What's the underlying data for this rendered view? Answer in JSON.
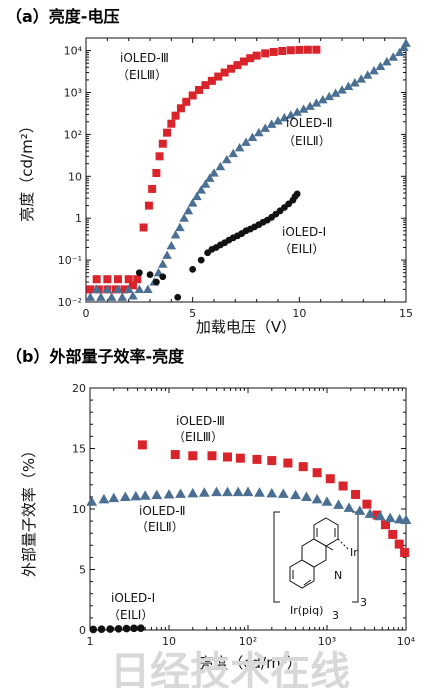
{
  "chart_data": [
    {
      "type": "scatter",
      "title": "（a）亮度-电压",
      "xlabel": "加载电压（V）",
      "ylabel": "亮度（cd/m²）",
      "xlim": [
        0,
        15
      ],
      "ylim": [
        0.01,
        20000
      ],
      "yscale": "log",
      "x_ticks": [
        "0",
        "5",
        "10",
        "15"
      ],
      "y_ticks": [
        "10⁻²",
        "10⁻¹",
        "1",
        "10",
        "10²",
        "10³",
        "10⁴"
      ],
      "series": [
        {
          "name": "iOLED-Ⅲ",
          "sublabel": "（EILⅢ）",
          "marker": "square",
          "color": "#d9242c",
          "points": [
            [
              0.2,
              0.02
            ],
            [
              0.6,
              0.02
            ],
            [
              1.0,
              0.02
            ],
            [
              1.4,
              0.02
            ],
            [
              1.8,
              0.02
            ],
            [
              2.2,
              0.025
            ],
            [
              0.5,
              0.035
            ],
            [
              1.0,
              0.035
            ],
            [
              1.5,
              0.035
            ],
            [
              2.0,
              0.035
            ],
            [
              2.4,
              0.035
            ],
            [
              2.7,
              0.6
            ],
            [
              2.95,
              2
            ],
            [
              3.1,
              5
            ],
            [
              3.3,
              12
            ],
            [
              3.45,
              30
            ],
            [
              3.6,
              60
            ],
            [
              3.8,
              110
            ],
            [
              4.0,
              180
            ],
            [
              4.2,
              280
            ],
            [
              4.45,
              420
            ],
            [
              4.7,
              600
            ],
            [
              5.0,
              850
            ],
            [
              5.3,
              1150
            ],
            [
              5.6,
              1500
            ],
            [
              5.9,
              1900
            ],
            [
              6.2,
              2400
            ],
            [
              6.5,
              3000
            ],
            [
              6.8,
              3700
            ],
            [
              7.1,
              4500
            ],
            [
              7.4,
              5500
            ],
            [
              7.7,
              6600
            ],
            [
              8.0,
              7600
            ],
            [
              8.4,
              8600
            ],
            [
              8.8,
              9300
            ],
            [
              9.2,
              9800
            ],
            [
              9.6,
              10200
            ],
            [
              10.0,
              10400
            ],
            [
              10.4,
              10500
            ],
            [
              10.8,
              10500
            ]
          ]
        },
        {
          "name": "iOLED-Ⅱ",
          "sublabel": "（EILⅡ）",
          "marker": "triangle",
          "color": "#4a6f93",
          "points": [
            [
              0.2,
              0.013
            ],
            [
              0.7,
              0.013
            ],
            [
              1.2,
              0.013
            ],
            [
              1.7,
              0.013
            ],
            [
              2.2,
              0.014
            ],
            [
              0.5,
              0.02
            ],
            [
              1.0,
              0.02
            ],
            [
              1.5,
              0.02
            ],
            [
              2.0,
              0.02
            ],
            [
              2.5,
              0.02
            ],
            [
              2.9,
              0.02
            ],
            [
              3.2,
              0.03
            ],
            [
              3.4,
              0.05
            ],
            [
              3.6,
              0.08
            ],
            [
              3.8,
              0.13
            ],
            [
              4.0,
              0.22
            ],
            [
              4.2,
              0.4
            ],
            [
              4.4,
              0.6
            ],
            [
              4.6,
              1.0
            ],
            [
              4.8,
              1.5
            ],
            [
              5.0,
              2.3
            ],
            [
              5.2,
              3.3
            ],
            [
              5.4,
              4.7
            ],
            [
              5.6,
              6.5
            ],
            [
              5.8,
              9
            ],
            [
              6.0,
              12
            ],
            [
              6.3,
              17
            ],
            [
              6.6,
              25
            ],
            [
              6.9,
              35
            ],
            [
              7.2,
              48
            ],
            [
              7.5,
              65
            ],
            [
              7.8,
              85
            ],
            [
              8.1,
              110
            ],
            [
              8.4,
              140
            ],
            [
              8.7,
              175
            ],
            [
              9.0,
              210
            ],
            [
              9.3,
              250
            ],
            [
              9.6,
              290
            ],
            [
              9.9,
              340
            ],
            [
              10.2,
              400
            ],
            [
              10.5,
              470
            ],
            [
              10.8,
              560
            ],
            [
              11.1,
              670
            ],
            [
              11.4,
              800
            ],
            [
              11.7,
              960
            ],
            [
              12.0,
              1150
            ],
            [
              12.3,
              1400
            ],
            [
              12.6,
              1700
            ],
            [
              12.9,
              2100
            ],
            [
              13.2,
              2600
            ],
            [
              13.5,
              3300
            ],
            [
              13.8,
              4200
            ],
            [
              14.1,
              5400
            ],
            [
              14.4,
              7000
            ],
            [
              14.7,
              9000
            ],
            [
              14.9,
              12000
            ],
            [
              15.0,
              15000
            ]
          ]
        },
        {
          "name": "iOLED-Ⅰ",
          "sublabel": "（EILⅠ）",
          "marker": "circle",
          "color": "#111111",
          "points": [
            [
              2.5,
              0.05
            ],
            [
              3.0,
              0.045
            ],
            [
              3.3,
              0.03
            ],
            [
              3.6,
              0.04
            ],
            [
              4.3,
              0.013
            ],
            [
              5.0,
              0.06
            ],
            [
              5.4,
              0.1
            ],
            [
              5.7,
              0.15
            ],
            [
              5.9,
              0.18
            ],
            [
              6.1,
              0.2
            ],
            [
              6.3,
              0.23
            ],
            [
              6.5,
              0.26
            ],
            [
              6.7,
              0.3
            ],
            [
              6.9,
              0.34
            ],
            [
              7.1,
              0.38
            ],
            [
              7.3,
              0.43
            ],
            [
              7.5,
              0.5
            ],
            [
              7.7,
              0.55
            ],
            [
              7.9,
              0.62
            ],
            [
              8.1,
              0.7
            ],
            [
              8.3,
              0.8
            ],
            [
              8.5,
              0.9
            ],
            [
              8.7,
              1.05
            ],
            [
              8.9,
              1.25
            ],
            [
              9.1,
              1.5
            ],
            [
              9.3,
              1.8
            ],
            [
              9.5,
              2.2
            ],
            [
              9.7,
              2.7
            ],
            [
              9.8,
              3.3
            ],
            [
              9.9,
              3.8
            ]
          ]
        }
      ]
    },
    {
      "type": "scatter",
      "title": "（b）外部量子效率-亮度",
      "xlabel": "亮度（cd/m²）",
      "ylabel": "外部量子效率（%）",
      "xlim": [
        1,
        10000
      ],
      "ylim": [
        0,
        20
      ],
      "xscale": "log",
      "x_ticks": [
        "1",
        "10",
        "10²",
        "10³",
        "10⁴"
      ],
      "y_ticks": [
        "0",
        "5",
        "10",
        "15",
        "20"
      ],
      "series": [
        {
          "name": "iOLED-Ⅲ",
          "sublabel": "（EILⅢ）",
          "marker": "square",
          "color": "#d9242c",
          "points": [
            [
              4.6,
              15.3
            ],
            [
              12,
              14.5
            ],
            [
              20,
              14.4
            ],
            [
              35,
              14.4
            ],
            [
              55,
              14.3
            ],
            [
              80,
              14.2
            ],
            [
              130,
              14.1
            ],
            [
              200,
              14.0
            ],
            [
              320,
              13.8
            ],
            [
              500,
              13.5
            ],
            [
              750,
              13.0
            ],
            [
              1100,
              12.5
            ],
            [
              1600,
              11.9
            ],
            [
              2300,
              11.2
            ],
            [
              3200,
              10.4
            ],
            [
              4300,
              9.5
            ],
            [
              5500,
              8.7
            ],
            [
              6800,
              7.9
            ],
            [
              8200,
              7.1
            ],
            [
              9600,
              6.4
            ]
          ]
        },
        {
          "name": "iOLED-Ⅱ",
          "sublabel": "（EILⅡ）",
          "marker": "triangle",
          "color": "#4a6f93",
          "points": [
            [
              1.05,
              10.6
            ],
            [
              1.5,
              10.8
            ],
            [
              2.0,
              10.9
            ],
            [
              2.8,
              11.0
            ],
            [
              3.8,
              11.05
            ],
            [
              5,
              11.1
            ],
            [
              7,
              11.15
            ],
            [
              10,
              11.2
            ],
            [
              14,
              11.25
            ],
            [
              20,
              11.3
            ],
            [
              28,
              11.35
            ],
            [
              40,
              11.4
            ],
            [
              55,
              11.4
            ],
            [
              75,
              11.4
            ],
            [
              100,
              11.4
            ],
            [
              140,
              11.35
            ],
            [
              200,
              11.3
            ],
            [
              280,
              11.25
            ],
            [
              400,
              11.15
            ],
            [
              550,
              11.0
            ],
            [
              750,
              10.8
            ],
            [
              1000,
              10.6
            ],
            [
              1400,
              10.35
            ],
            [
              1900,
              10.1
            ],
            [
              2600,
              9.85
            ],
            [
              3500,
              9.6
            ],
            [
              4700,
              9.4
            ],
            [
              6300,
              9.25
            ],
            [
              8300,
              9.15
            ],
            [
              10000,
              9.1
            ]
          ]
        },
        {
          "name": "iOLED-Ⅰ",
          "sublabel": "（EILⅠ）",
          "marker": "circle",
          "color": "#111111",
          "points": [
            [
              1.1,
              0.05
            ],
            [
              1.4,
              0.07
            ],
            [
              1.8,
              0.08
            ],
            [
              2.3,
              0.1
            ],
            [
              2.9,
              0.12
            ],
            [
              3.6,
              0.14
            ],
            [
              4.4,
              0.15
            ]
          ]
        }
      ],
      "inset": {
        "label": "Ir",
        "formula_label": "Ir(piq)",
        "subscript": "3",
        "atom_label": "N"
      }
    }
  ],
  "watermark": "日经技术在线"
}
